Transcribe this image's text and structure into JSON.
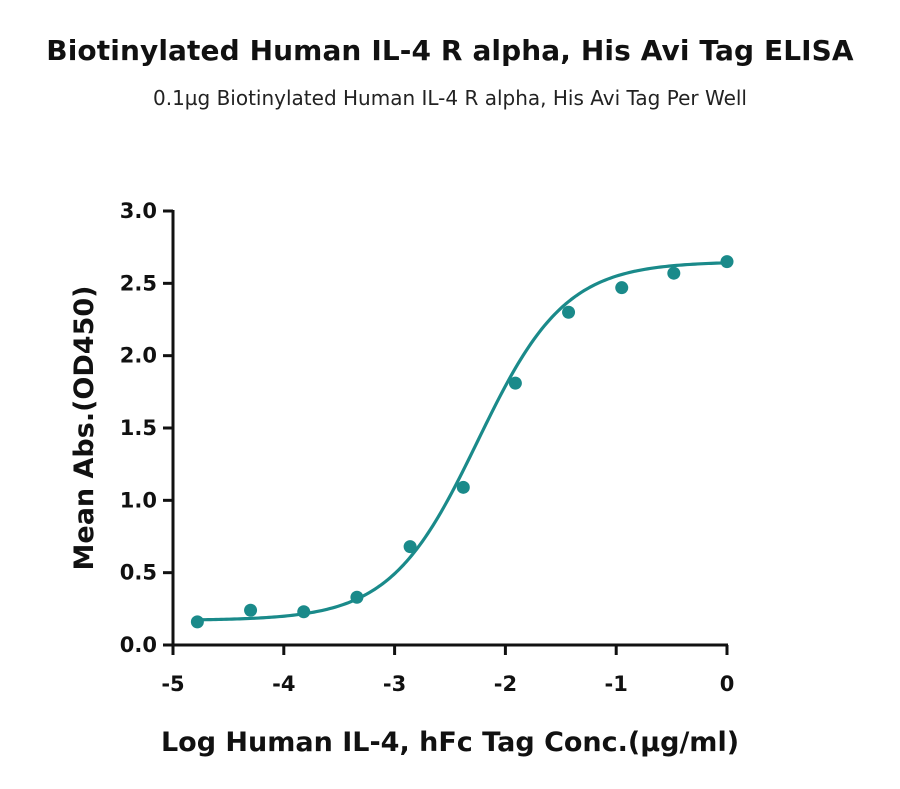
{
  "chart_data": {
    "type": "scatter",
    "title": "Biotinylated Human IL-4 R alpha, His Avi Tag ELISA",
    "subtitle": "0.1µg Biotinylated Human IL-4 R alpha, His Avi Tag Per Well",
    "xlabel": "Log Human IL-4, hFc Tag Conc.(µg/ml)",
    "ylabel": "Mean Abs.(OD450)",
    "xlim": [
      -5,
      0
    ],
    "ylim": [
      0.0,
      3.0
    ],
    "x_ticks": [
      -5,
      -4,
      -3,
      -2,
      -1,
      0
    ],
    "x_tick_labels": [
      "-5",
      "-4",
      "-3",
      "-2",
      "-1",
      "0"
    ],
    "y_ticks": [
      0.0,
      0.5,
      1.0,
      1.5,
      2.0,
      2.5,
      3.0
    ],
    "y_tick_labels": [
      "0.0",
      "0.5",
      "1.0",
      "1.5",
      "2.0",
      "2.5",
      "3.0"
    ],
    "grid": false,
    "color": "#1a8a8a",
    "series": [
      {
        "x": [
          -4.78,
          -4.3,
          -3.82,
          -3.34,
          -2.86,
          -2.38,
          -1.91,
          -1.43,
          -0.95,
          -0.48,
          0.0
        ],
        "y": [
          0.16,
          0.24,
          0.23,
          0.33,
          0.68,
          1.09,
          1.81,
          2.3,
          2.47,
          2.57,
          2.65
        ]
      }
    ],
    "fit": {
      "type": "4PL",
      "bottom": 0.17,
      "top": 2.65,
      "logEC50": -2.25,
      "hill": 1.1,
      "x_range": [
        -4.78,
        0.0
      ]
    }
  }
}
